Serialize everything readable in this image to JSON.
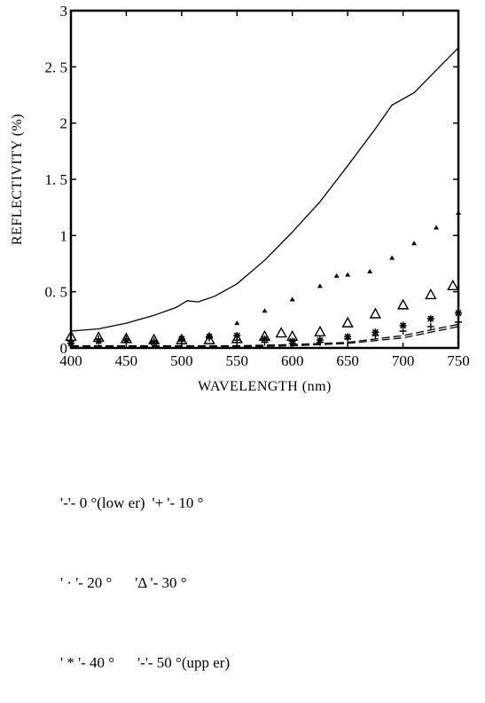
{
  "chart_data": {
    "type": "line",
    "xlabel": "WAVELENGTH (nm)",
    "ylabel": "REFLECTIVITY (%)",
    "xlim": [
      400,
      750
    ],
    "ylim": [
      0,
      3
    ],
    "x_ticks": [
      400,
      450,
      500,
      550,
      600,
      650,
      700,
      750
    ],
    "x_tick_labels": [
      "400",
      "450",
      "500",
      "550",
      "600",
      "650",
      "700",
      "750"
    ],
    "y_ticks": [
      0,
      0.5,
      1,
      1.5,
      2,
      2.5,
      3
    ],
    "y_tick_labels": [
      "0",
      "0. 5",
      "1",
      "1. 5",
      "2",
      "2. 5",
      "3"
    ],
    "grid": false,
    "series": [
      {
        "style": "solid",
        "points": [
          [
            400,
            0.15
          ],
          [
            425,
            0.17
          ],
          [
            450,
            0.22
          ],
          [
            475,
            0.29
          ],
          [
            495,
            0.36
          ],
          [
            505,
            0.42
          ],
          [
            515,
            0.41
          ],
          [
            530,
            0.46
          ],
          [
            550,
            0.57
          ],
          [
            575,
            0.78
          ],
          [
            600,
            1.03
          ],
          [
            625,
            1.3
          ],
          [
            650,
            1.62
          ],
          [
            675,
            1.95
          ],
          [
            690,
            2.16
          ],
          [
            710,
            2.27
          ],
          [
            730,
            2.47
          ],
          [
            750,
            2.67
          ]
        ]
      },
      {
        "style": "dot",
        "points": [
          [
            400,
            0.07
          ],
          [
            425,
            0.07
          ],
          [
            450,
            0.06
          ],
          [
            475,
            0.05
          ],
          [
            500,
            0.07
          ],
          [
            525,
            0.12
          ],
          [
            550,
            0.22
          ],
          [
            575,
            0.33
          ],
          [
            600,
            0.43
          ],
          [
            625,
            0.55
          ],
          [
            640,
            0.64
          ],
          [
            650,
            0.65
          ],
          [
            670,
            0.68
          ],
          [
            690,
            0.8
          ],
          [
            710,
            0.93
          ],
          [
            730,
            1.07
          ],
          [
            750,
            1.2
          ]
        ]
      },
      {
        "style": "triangle",
        "points": [
          [
            400,
            0.1
          ],
          [
            425,
            0.09
          ],
          [
            450,
            0.08
          ],
          [
            475,
            0.07
          ],
          [
            500,
            0.07
          ],
          [
            525,
            0.07
          ],
          [
            550,
            0.08
          ],
          [
            575,
            0.1
          ],
          [
            590,
            0.13
          ],
          [
            600,
            0.1
          ],
          [
            625,
            0.14
          ],
          [
            650,
            0.22
          ],
          [
            675,
            0.3
          ],
          [
            700,
            0.38
          ],
          [
            725,
            0.47
          ],
          [
            745,
            0.55
          ]
        ]
      },
      {
        "style": "star",
        "points": [
          [
            400,
            0.04
          ],
          [
            425,
            0.06
          ],
          [
            450,
            0.07
          ],
          [
            475,
            0.05
          ],
          [
            500,
            0.08
          ],
          [
            525,
            0.1
          ],
          [
            550,
            0.11
          ],
          [
            575,
            0.08
          ],
          [
            600,
            0.06
          ],
          [
            625,
            0.07
          ],
          [
            650,
            0.1
          ],
          [
            675,
            0.14
          ],
          [
            700,
            0.2
          ],
          [
            725,
            0.26
          ],
          [
            750,
            0.31
          ]
        ]
      },
      {
        "style": "plus",
        "points": [
          [
            400,
            0.06
          ],
          [
            425,
            0.08
          ],
          [
            450,
            0.08
          ],
          [
            475,
            0.06
          ],
          [
            500,
            0.07
          ],
          [
            525,
            0.09
          ],
          [
            550,
            0.07
          ],
          [
            575,
            0.05
          ],
          [
            600,
            0.04
          ],
          [
            625,
            0.05
          ],
          [
            650,
            0.08
          ],
          [
            675,
            0.11
          ],
          [
            700,
            0.15
          ],
          [
            725,
            0.19
          ],
          [
            750,
            0.23
          ]
        ]
      },
      {
        "style": "dash",
        "points": [
          [
            400,
            0.01
          ],
          [
            450,
            0.01
          ],
          [
            500,
            0.01
          ],
          [
            550,
            0.01
          ],
          [
            600,
            0.02
          ],
          [
            650,
            0.04
          ],
          [
            700,
            0.09
          ],
          [
            725,
            0.14
          ],
          [
            750,
            0.19
          ]
        ]
      },
      {
        "style": "dash",
        "points": [
          [
            400,
            0.02
          ],
          [
            450,
            0.02
          ],
          [
            500,
            0.02
          ],
          [
            550,
            0.02
          ],
          [
            600,
            0.03
          ],
          [
            650,
            0.05
          ],
          [
            700,
            0.11
          ],
          [
            725,
            0.16
          ],
          [
            750,
            0.21
          ]
        ]
      }
    ],
    "legend": {
      "placement": "bottom",
      "rows": [
        [
          "'-'- 0 °(low er)",
          "'+ '- 10 °"
        ],
        [
          "' · '- 20 °",
          "'Δ '- 30 °"
        ],
        [
          "' * '- 40 °",
          "'-'- 50 °(upp er)"
        ]
      ]
    }
  }
}
